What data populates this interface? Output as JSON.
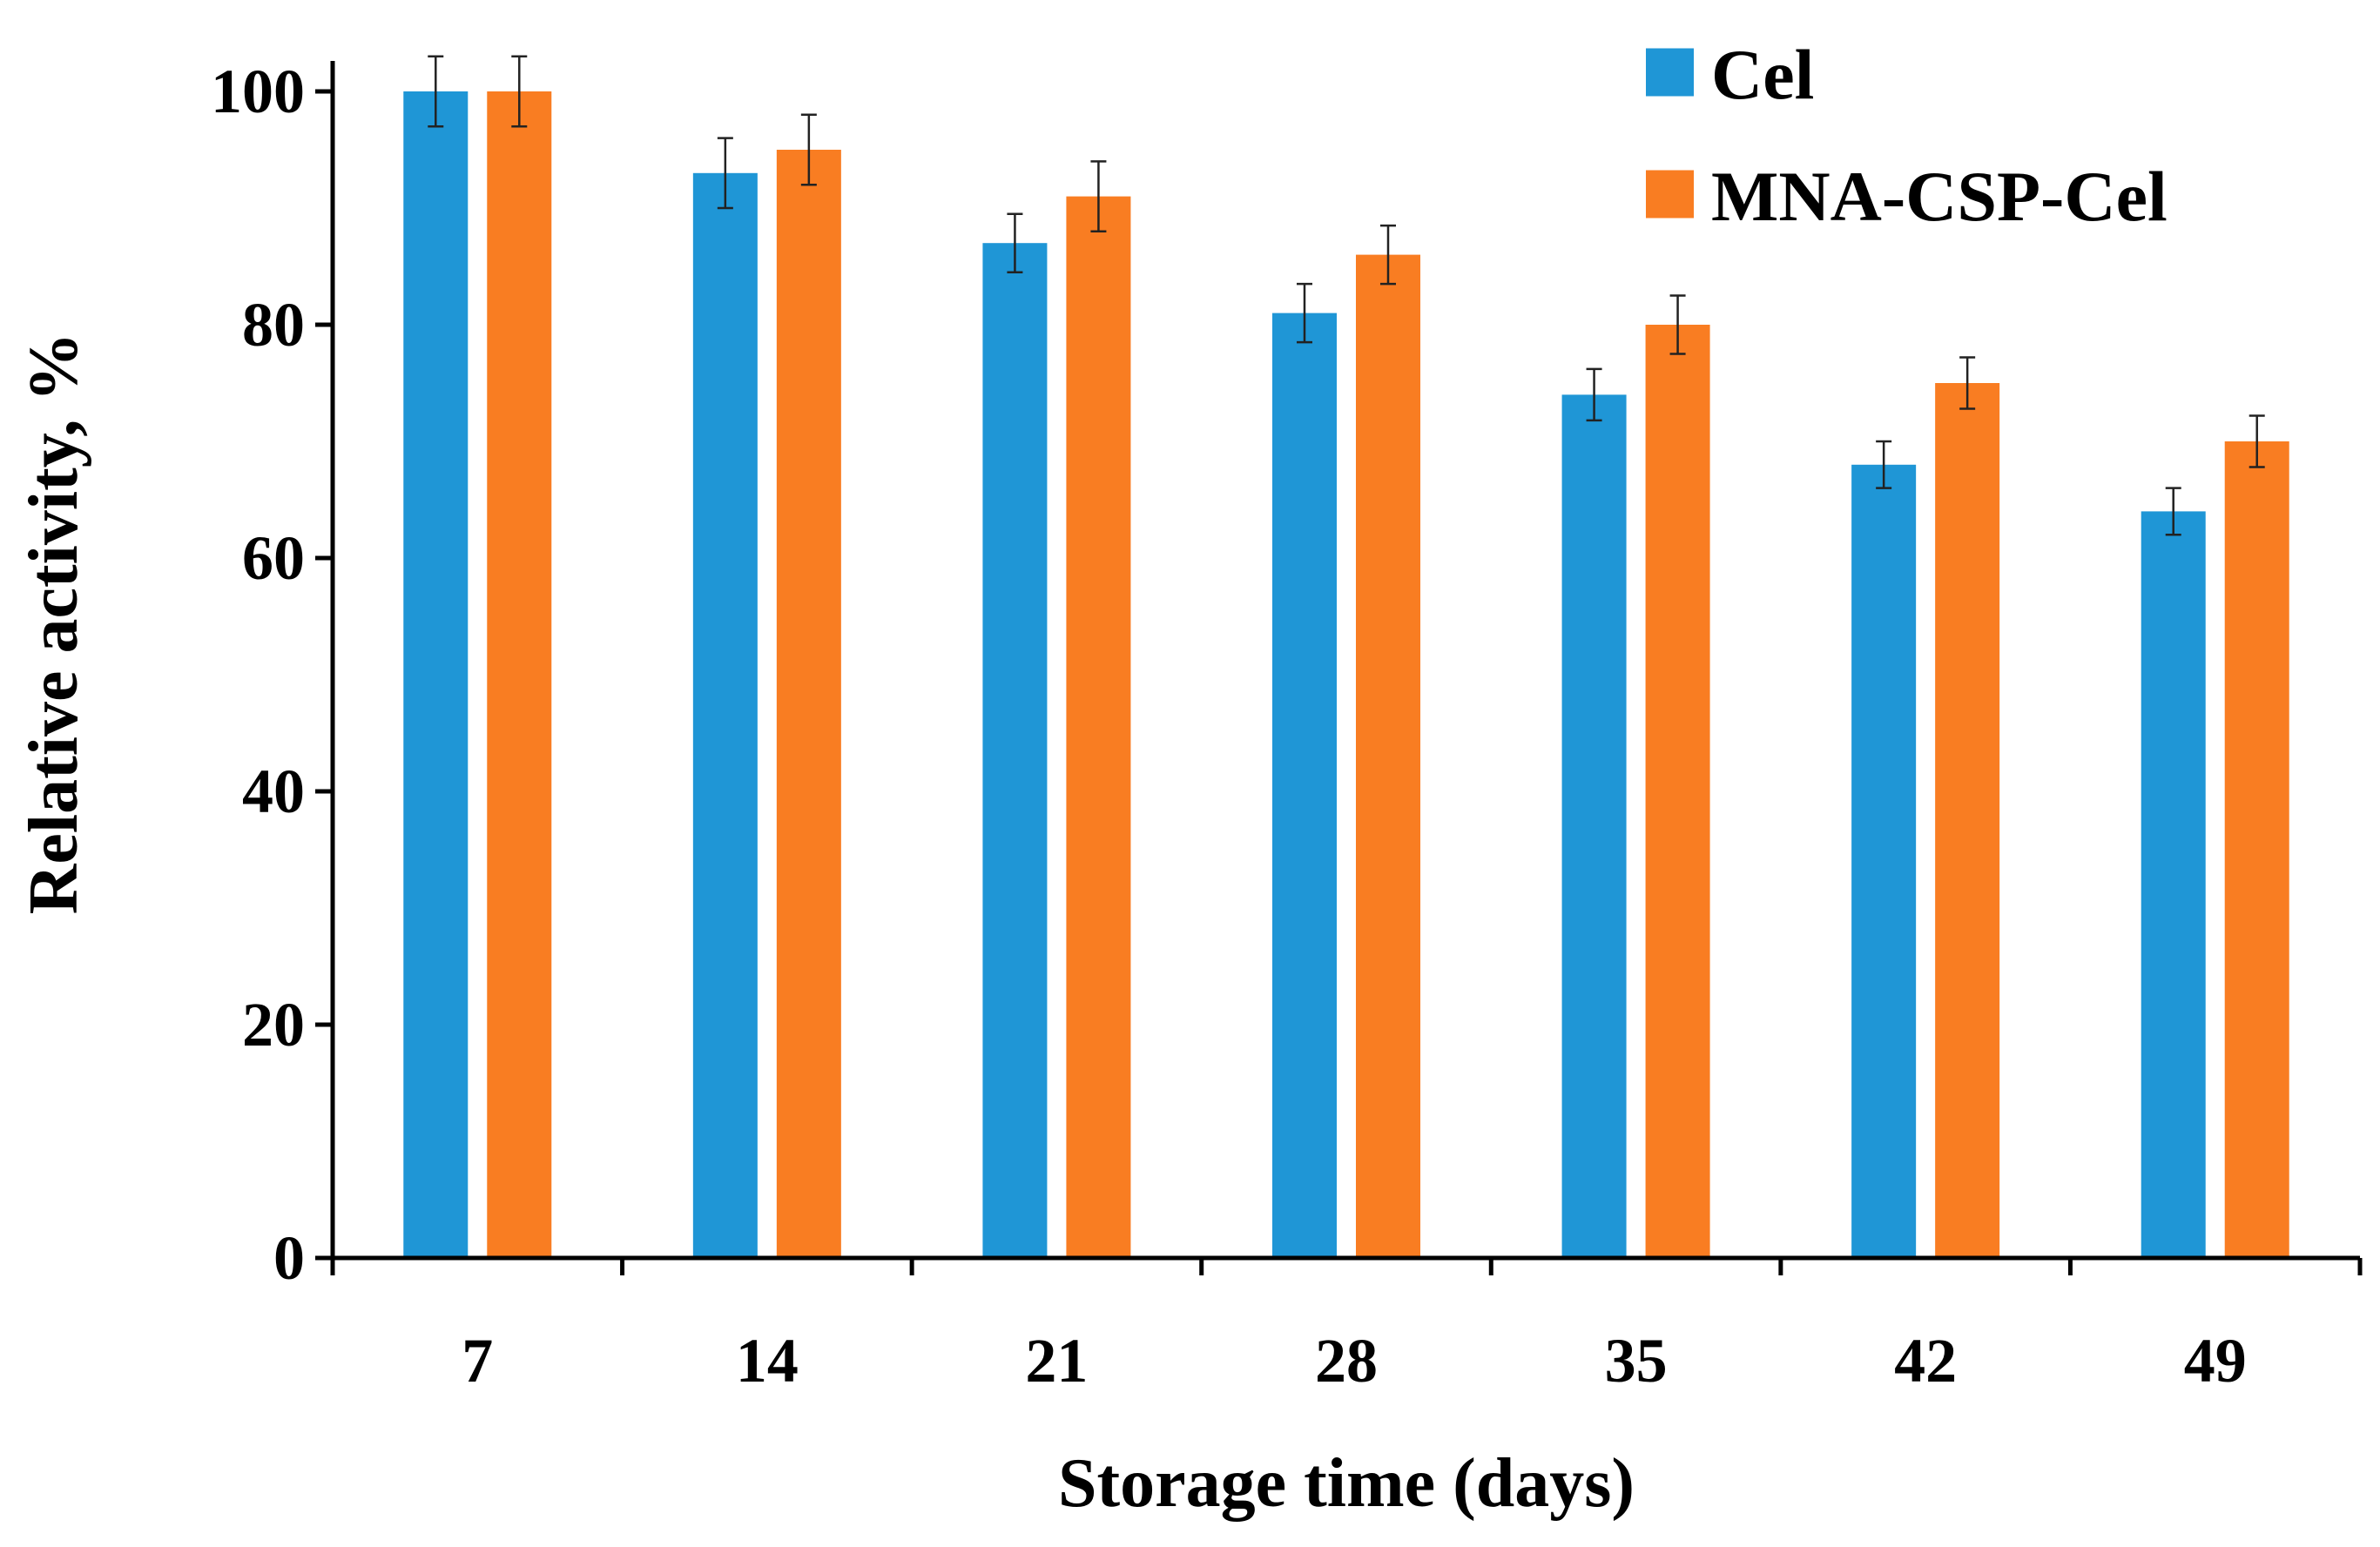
{
  "chart_data": {
    "type": "bar",
    "title": "",
    "xlabel": "Storage time (days)",
    "ylabel": "Relative activity, %",
    "categories": [
      "7",
      "14",
      "21",
      "28",
      "35",
      "42",
      "49"
    ],
    "series": [
      {
        "name": "Cel",
        "color": "#1f96d6",
        "values": [
          100,
          93,
          87,
          81,
          74,
          68,
          64
        ],
        "errors": [
          3.0,
          3.0,
          2.5,
          2.5,
          2.2,
          2.0,
          2.0
        ]
      },
      {
        "name": "MNA-CSP-Cel",
        "color": "#f97d22",
        "values": [
          100,
          95,
          91,
          86,
          80,
          75,
          70
        ],
        "errors": [
          3.0,
          3.0,
          3.0,
          2.5,
          2.5,
          2.2,
          2.2
        ]
      }
    ],
    "ylim": [
      0,
      100
    ],
    "yticks": [
      0,
      20,
      40,
      60,
      80,
      100
    ],
    "grid": false,
    "legend_position": "top-right"
  }
}
